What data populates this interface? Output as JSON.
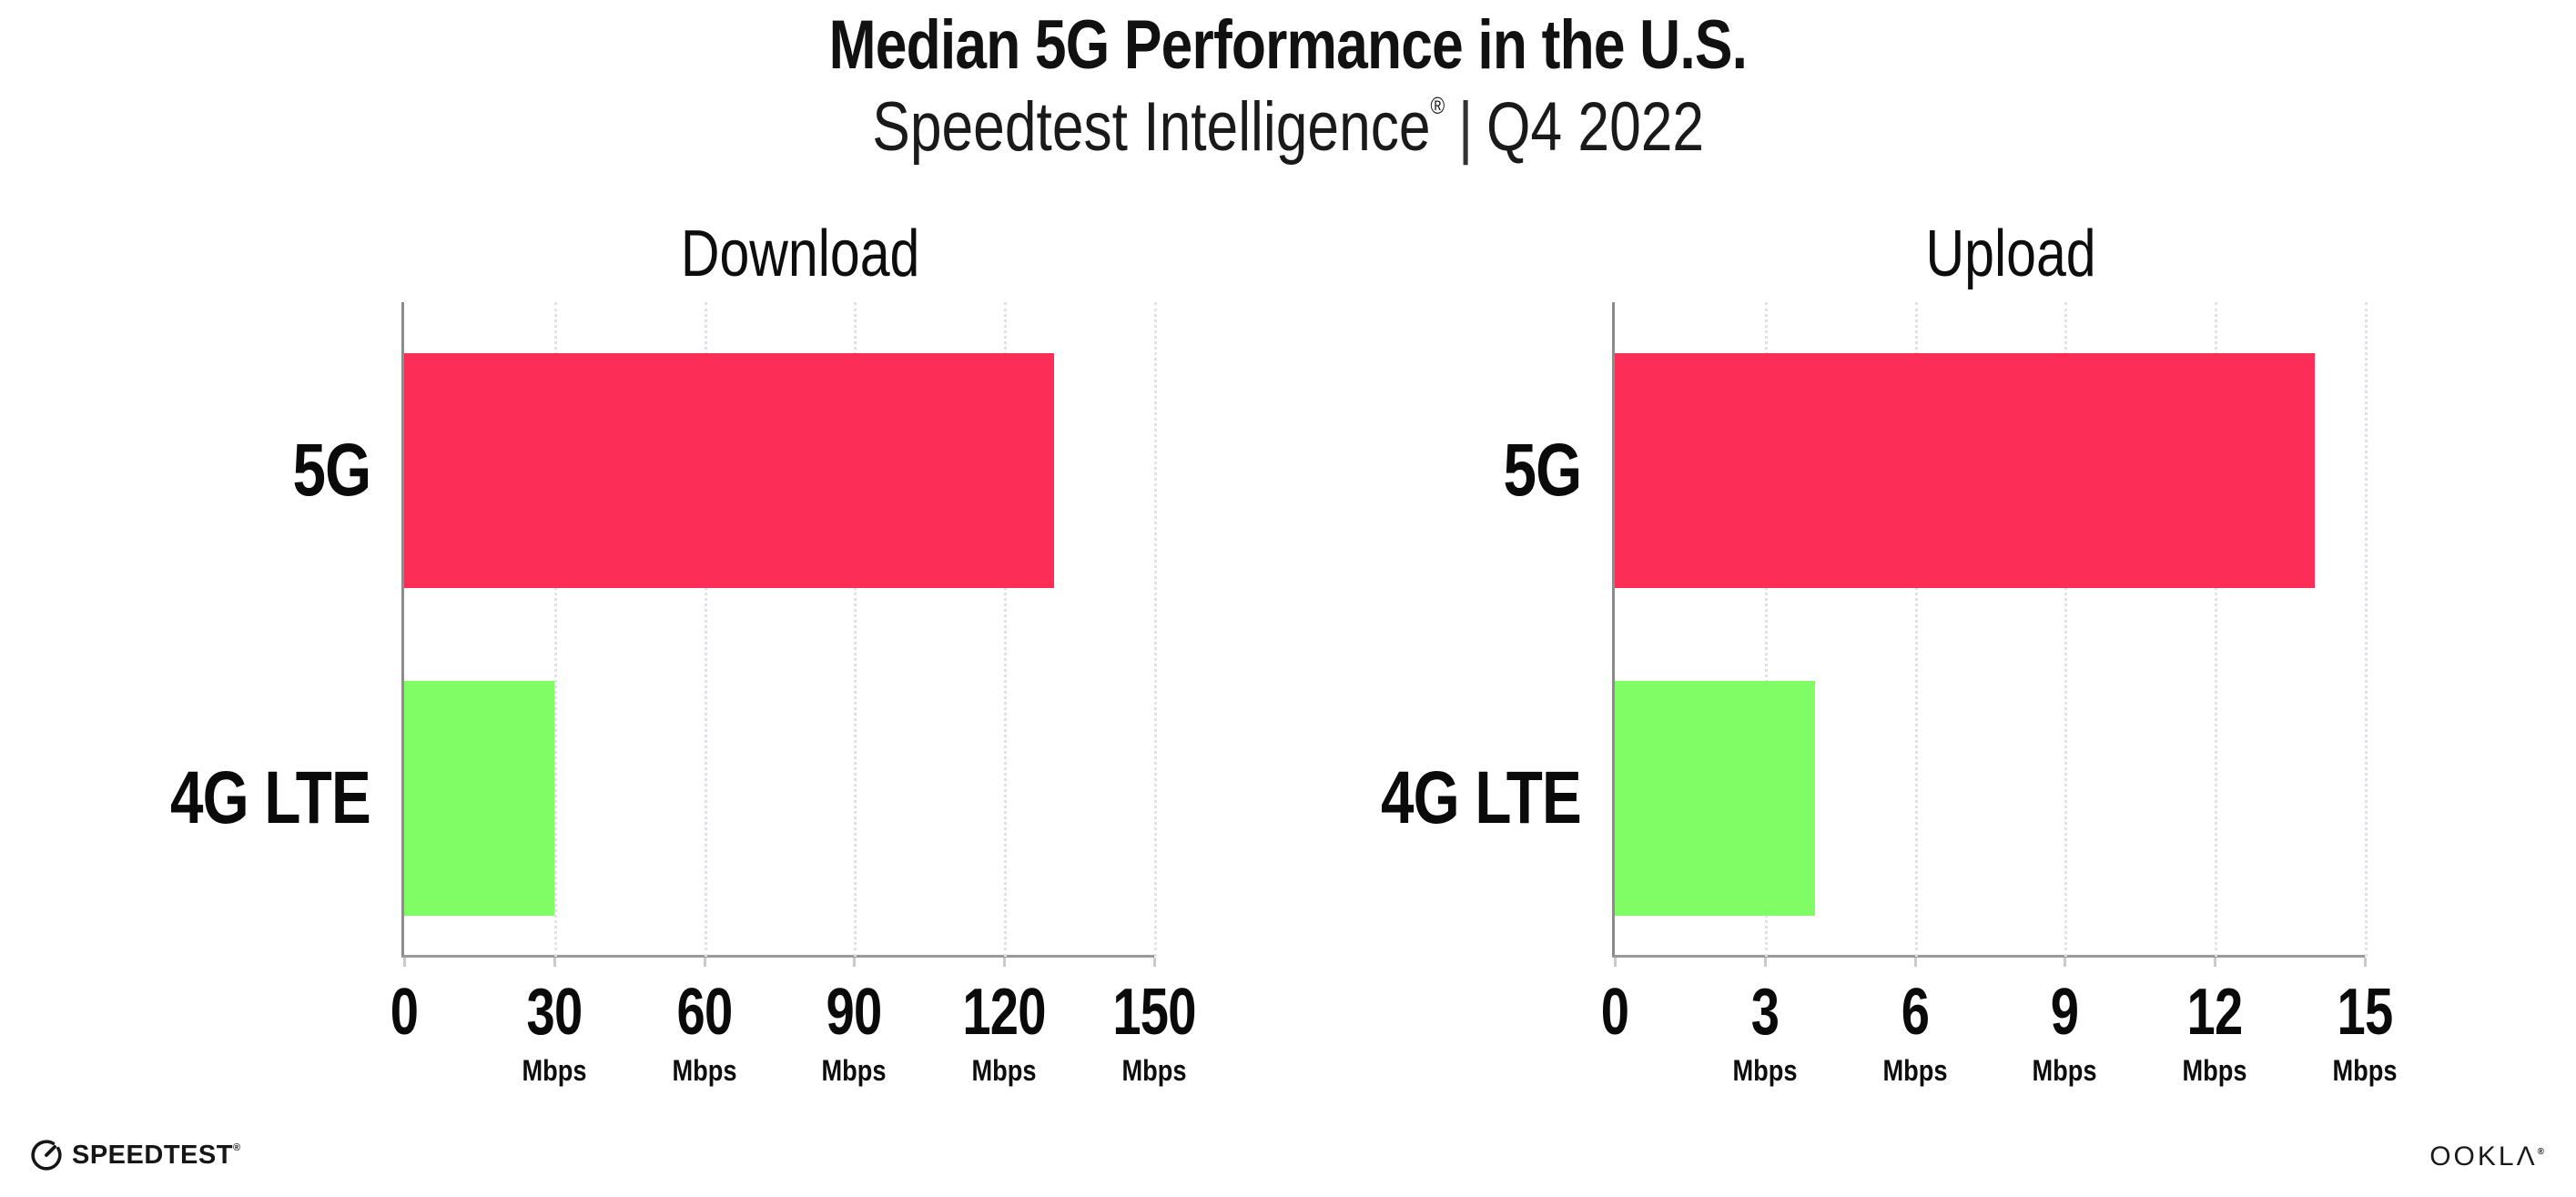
{
  "header": {
    "title": "Median 5G Performance in the U.S.",
    "subtitle_brand": "Speedtest Intelligence",
    "subtitle_reg": "®",
    "subtitle_sep": "|",
    "subtitle_period": "Q4 2022"
  },
  "chart_data": [
    {
      "type": "bar",
      "orientation": "horizontal",
      "title": "Download",
      "categories": [
        "5G",
        "4G LTE"
      ],
      "values": [
        130,
        30
      ],
      "unit": "Mbps",
      "xlim": [
        0,
        150
      ],
      "xticks": [
        0,
        30,
        60,
        90,
        120,
        150
      ],
      "bar_colors": [
        "#FC2E58",
        "#80FC64"
      ],
      "grid": "dotted-vertical",
      "legend": "none"
    },
    {
      "type": "bar",
      "orientation": "horizontal",
      "title": "Upload",
      "categories": [
        "5G",
        "4G LTE"
      ],
      "values": [
        14,
        4
      ],
      "unit": "Mbps",
      "xlim": [
        0,
        15
      ],
      "xticks": [
        0,
        3,
        6,
        9,
        12,
        15
      ],
      "bar_colors": [
        "#FC2E58",
        "#80FC64"
      ],
      "grid": "dotted-vertical",
      "legend": "none"
    }
  ],
  "footer": {
    "speedtest_label": "SPEEDTEST",
    "speedtest_reg": "®",
    "ookla_label": "OOKLΛ",
    "ookla_reg": "®"
  },
  "colors": {
    "bar_5g": "#FC2E58",
    "bar_4g_lte": "#80FC64",
    "axis": "#8C8C8C",
    "gridline": "#E0E0E8",
    "text": "#0A0A0A",
    "background": "#FFFFFF"
  }
}
